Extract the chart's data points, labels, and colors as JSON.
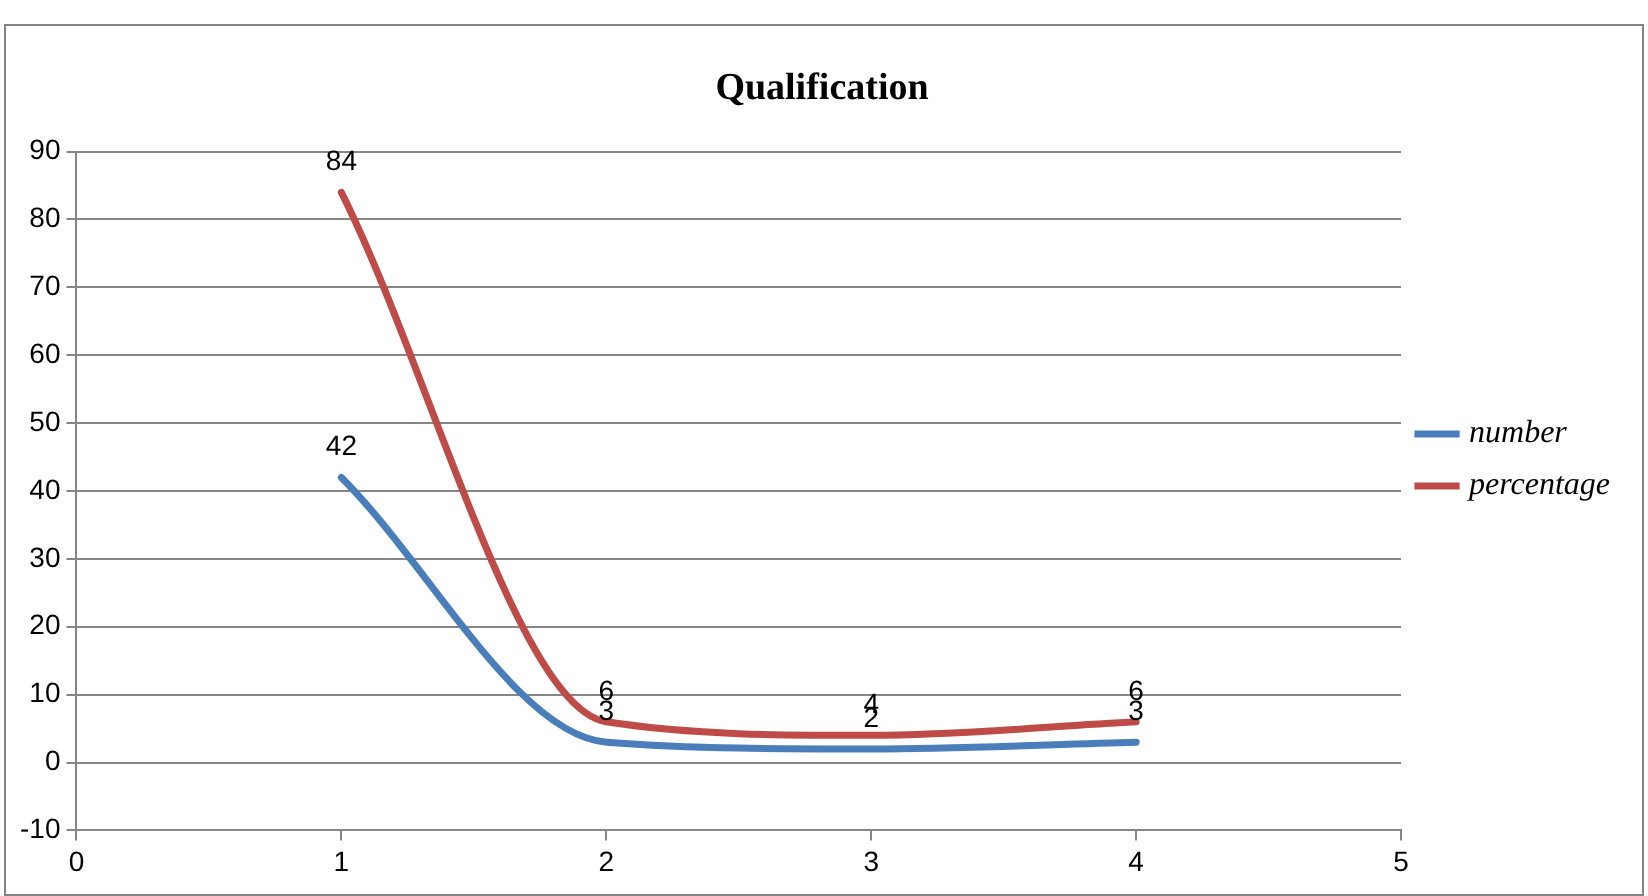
{
  "chart_data": {
    "type": "line",
    "title": "Qualification",
    "x": [
      1,
      2,
      3,
      4
    ],
    "series": [
      {
        "name": "number",
        "color": "#4a7ebb",
        "values": [
          42,
          3,
          2,
          3
        ]
      },
      {
        "name": "percentage",
        "color": "#be4b48",
        "values": [
          84,
          6,
          4,
          6
        ]
      }
    ],
    "xlim": [
      0,
      5
    ],
    "xticks": [
      0,
      1,
      2,
      3,
      4,
      5
    ],
    "ylim": [
      -10,
      90
    ],
    "yticks": [
      -10,
      0,
      10,
      20,
      30,
      40,
      50,
      60,
      70,
      80,
      90
    ],
    "grid": "y",
    "legend": "right",
    "marker": "none",
    "line_style": "solid",
    "data_labels": true
  }
}
